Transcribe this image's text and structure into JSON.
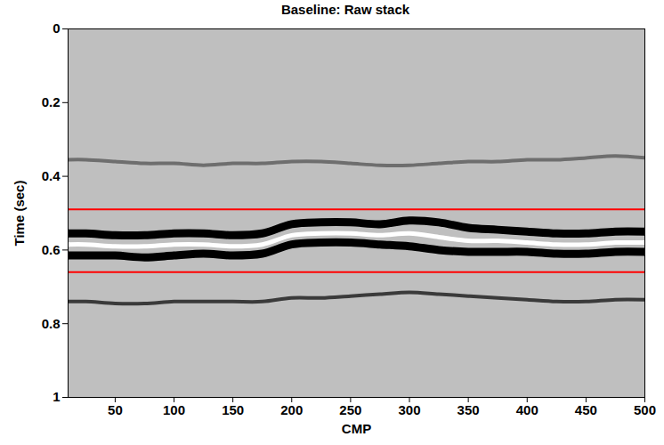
{
  "chart_data": {
    "type": "line",
    "title": "Baseline: Raw stack",
    "x_label": "CMP",
    "y_label": "Time (sec)",
    "x": [
      10,
      25,
      50,
      75,
      100,
      125,
      150,
      175,
      200,
      225,
      250,
      275,
      300,
      325,
      350,
      375,
      400,
      425,
      450,
      475,
      500
    ],
    "series": [
      {
        "color": "#6e6e6e",
        "values": [
          0.355,
          0.355,
          0.36,
          0.365,
          0.365,
          0.37,
          0.365,
          0.365,
          0.36,
          0.36,
          0.365,
          0.37,
          0.37,
          0.365,
          0.36,
          0.36,
          0.355,
          0.355,
          0.35,
          0.345,
          0.35
        ]
      },
      {
        "color": "#000000",
        "values": [
          0.555,
          0.555,
          0.56,
          0.56,
          0.555,
          0.555,
          0.56,
          0.555,
          0.53,
          0.525,
          0.525,
          0.53,
          0.52,
          0.525,
          0.54,
          0.545,
          0.55,
          0.555,
          0.555,
          0.55,
          0.55
        ]
      },
      {
        "color": "#ffffff",
        "values": [
          0.585,
          0.585,
          0.59,
          0.59,
          0.585,
          0.585,
          0.59,
          0.585,
          0.56,
          0.555,
          0.555,
          0.56,
          0.555,
          0.565,
          0.575,
          0.575,
          0.58,
          0.585,
          0.585,
          0.58,
          0.58
        ]
      },
      {
        "color": "#000000",
        "values": [
          0.615,
          0.615,
          0.615,
          0.62,
          0.615,
          0.61,
          0.615,
          0.61,
          0.585,
          0.58,
          0.58,
          0.585,
          0.59,
          0.6,
          0.605,
          0.605,
          0.605,
          0.61,
          0.61,
          0.605,
          0.605
        ]
      },
      {
        "color": "#3a3a3a",
        "values": [
          0.74,
          0.74,
          0.745,
          0.745,
          0.74,
          0.74,
          0.74,
          0.74,
          0.73,
          0.73,
          0.725,
          0.72,
          0.715,
          0.72,
          0.725,
          0.73,
          0.735,
          0.74,
          0.74,
          0.735,
          0.735
        ]
      }
    ],
    "reference_lines": {
      "values": [
        0.49,
        0.66
      ],
      "color": "#ff0000"
    },
    "xlim": [
      10,
      500
    ],
    "xticks": [
      50,
      100,
      150,
      200,
      250,
      300,
      350,
      400,
      450,
      500
    ],
    "ylim": [
      0,
      1
    ],
    "yticks": [
      0,
      0.2,
      0.4,
      0.6,
      0.8,
      1
    ],
    "grid": false
  }
}
